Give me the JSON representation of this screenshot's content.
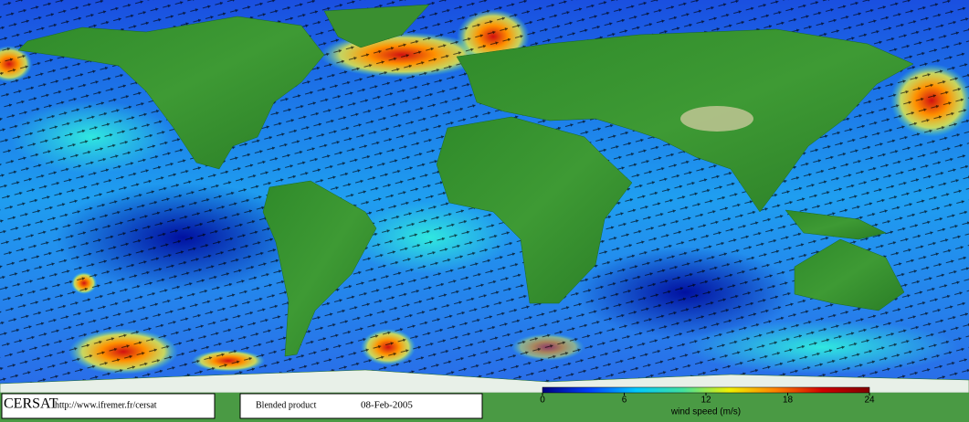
{
  "logo": "CERSAT",
  "url": "http://www.ifremer.fr/cersat",
  "product": "Blended product",
  "date": "08-Feb-2005",
  "colorbar": {
    "label": "wind speed (m/s)",
    "lim": [
      0,
      24
    ],
    "ticks": [
      0,
      6,
      12,
      18,
      24
    ],
    "colors": [
      "#000080",
      "#0040ff",
      "#00c8ff",
      "#40e0a0",
      "#f0f000",
      "#ff8000",
      "#d00000",
      "#800000"
    ]
  }
}
